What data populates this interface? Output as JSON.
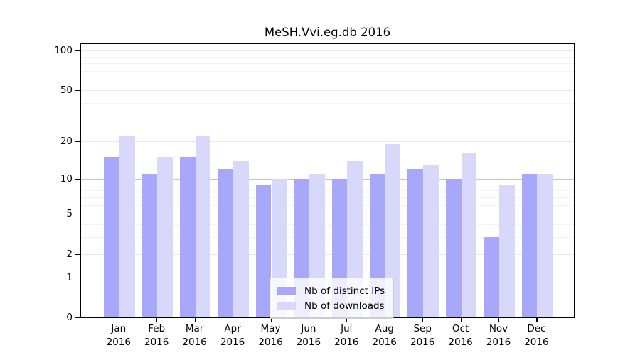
{
  "chart_data": {
    "type": "bar",
    "title": "MeSH.Vvi.eg.db 2016",
    "categories": [
      "Jan",
      "Feb",
      "Mar",
      "Apr",
      "May",
      "Jun",
      "Jul",
      "Aug",
      "Sep",
      "Oct",
      "Nov",
      "Dec"
    ],
    "x_year_label": "2016",
    "series": [
      {
        "name": "Nb of distinct IPs",
        "key": "distinct-ips",
        "color": "#a8a8fa",
        "values": [
          15,
          11,
          15,
          12,
          9,
          10,
          10,
          11,
          12,
          10,
          3,
          11
        ]
      },
      {
        "name": "Nb of downloads",
        "key": "downloads",
        "color": "#d8d8fa",
        "values": [
          22,
          15,
          22,
          14,
          10,
          11,
          14,
          19,
          13,
          16,
          9,
          11
        ]
      }
    ],
    "scale": "log1p",
    "ylim": [
      0,
      112
    ],
    "y_major_ticks": [
      0,
      1,
      2,
      5,
      10,
      20,
      50,
      100
    ],
    "y_minor_ticks": [
      3,
      4,
      6,
      7,
      8,
      9,
      30,
      40,
      60,
      70,
      80,
      90
    ],
    "emphasized_gridline": 10,
    "grid": true,
    "legend_position": "lower center",
    "colors": {
      "background": "#ffffff",
      "spine": "#000000",
      "text": "#000000",
      "major_grid": "#e8e8e8",
      "minor_grid": "#f3f3f3",
      "emphasis_grid": "#c4c4c4"
    }
  }
}
